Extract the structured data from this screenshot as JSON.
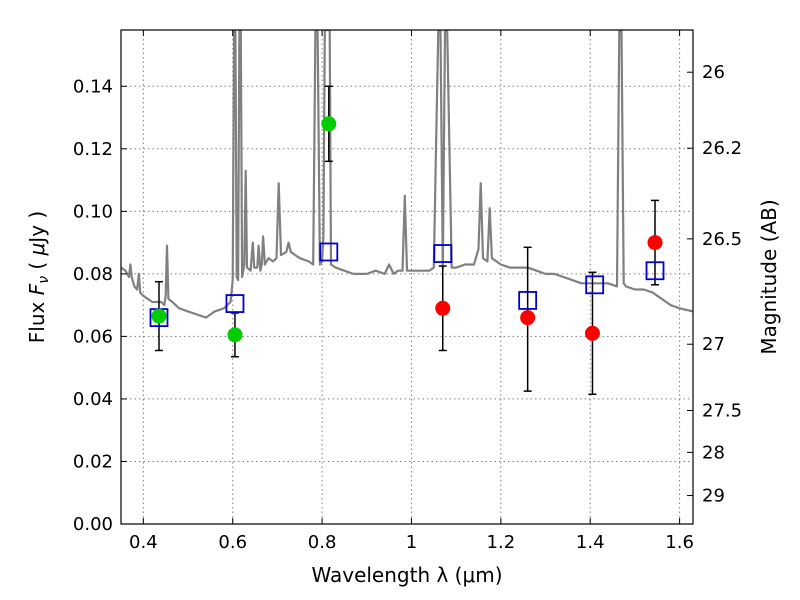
{
  "chart_data": {
    "type": "scatter",
    "xlabel": "Wavelength  λ (μm)",
    "ylabel": "Flux  Fν  ( μJy )",
    "ylabel_parts": {
      "prefix": "Flux ",
      "var": "F",
      "sub": "ν",
      "paren_open": "  ( ",
      "mu": "μ",
      "unit": "Jy )"
    },
    "right_ylabel": "Magnitude (AB)",
    "xlim": [
      0.35,
      1.63
    ],
    "ylim": [
      0.0,
      0.158
    ],
    "xticks": [
      0.4,
      0.6,
      0.8,
      1.0,
      1.2,
      1.4,
      1.6
    ],
    "xtick_labels": [
      "0.4",
      "0.6",
      "0.8",
      "1",
      "1.2",
      "1.4",
      "1.6"
    ],
    "yticks": [
      0.0,
      0.02,
      0.04,
      0.06,
      0.08,
      0.1,
      0.12,
      0.14
    ],
    "ytick_labels": [
      "0.00",
      "0.02",
      "0.04",
      "0.06",
      "0.08",
      "0.10",
      "0.12",
      "0.14"
    ],
    "right_ticks": [
      {
        "label": "26",
        "flux": 0.1445
      },
      {
        "label": "26.2",
        "flux": 0.1202
      },
      {
        "label": "26.5",
        "flux": 0.0912
      },
      {
        "label": "27",
        "flux": 0.0575
      },
      {
        "label": "27.5",
        "flux": 0.0363
      },
      {
        "label": "28",
        "flux": 0.0229
      },
      {
        "label": "29",
        "flux": 0.0091
      }
    ],
    "grid": true,
    "model_spectrum": {
      "color": "#808080",
      "points": [
        [
          0.35,
          0.082
        ],
        [
          0.36,
          0.081
        ],
        [
          0.368,
          0.079
        ],
        [
          0.371,
          0.083
        ],
        [
          0.374,
          0.079
        ],
        [
          0.38,
          0.076
        ],
        [
          0.386,
          0.075
        ],
        [
          0.39,
          0.08
        ],
        [
          0.393,
          0.074
        ],
        [
          0.4,
          0.073
        ],
        [
          0.41,
          0.072
        ],
        [
          0.42,
          0.071
        ],
        [
          0.43,
          0.071
        ],
        [
          0.44,
          0.071
        ],
        [
          0.447,
          0.07
        ],
        [
          0.45,
          0.073
        ],
        [
          0.453,
          0.089
        ],
        [
          0.456,
          0.072
        ],
        [
          0.465,
          0.071
        ],
        [
          0.48,
          0.069
        ],
        [
          0.5,
          0.068
        ],
        [
          0.52,
          0.067
        ],
        [
          0.54,
          0.066
        ],
        [
          0.56,
          0.068
        ],
        [
          0.58,
          0.069
        ],
        [
          0.595,
          0.071
        ],
        [
          0.6,
          0.078
        ],
        [
          0.603,
          0.158
        ],
        [
          0.606,
          0.158
        ],
        [
          0.609,
          0.079
        ],
        [
          0.612,
          0.078
        ],
        [
          0.615,
          0.158
        ],
        [
          0.618,
          0.158
        ],
        [
          0.621,
          0.079
        ],
        [
          0.626,
          0.083
        ],
        [
          0.629,
          0.113
        ],
        [
          0.632,
          0.082
        ],
        [
          0.64,
          0.081
        ],
        [
          0.645,
          0.09
        ],
        [
          0.648,
          0.082
        ],
        [
          0.655,
          0.082
        ],
        [
          0.658,
          0.089
        ],
        [
          0.662,
          0.081
        ],
        [
          0.665,
          0.083
        ],
        [
          0.668,
          0.092
        ],
        [
          0.672,
          0.083
        ],
        [
          0.68,
          0.085
        ],
        [
          0.69,
          0.084
        ],
        [
          0.698,
          0.085
        ],
        [
          0.703,
          0.109
        ],
        [
          0.708,
          0.086
        ],
        [
          0.72,
          0.087
        ],
        [
          0.725,
          0.09
        ],
        [
          0.73,
          0.087
        ],
        [
          0.75,
          0.085
        ],
        [
          0.77,
          0.084
        ],
        [
          0.78,
          0.083
        ],
        [
          0.785,
          0.158
        ],
        [
          0.79,
          0.158
        ],
        [
          0.795,
          0.083
        ],
        [
          0.8,
          0.084
        ],
        [
          0.803,
          0.092
        ],
        [
          0.806,
          0.158
        ],
        [
          0.81,
          0.158
        ],
        [
          0.813,
          0.158
        ],
        [
          0.817,
          0.158
        ],
        [
          0.82,
          0.083
        ],
        [
          0.83,
          0.082
        ],
        [
          0.85,
          0.081
        ],
        [
          0.87,
          0.08
        ],
        [
          0.9,
          0.08
        ],
        [
          0.92,
          0.081
        ],
        [
          0.94,
          0.08
        ],
        [
          0.95,
          0.083
        ],
        [
          0.96,
          0.08
        ],
        [
          0.97,
          0.081
        ],
        [
          0.98,
          0.081
        ],
        [
          0.985,
          0.105
        ],
        [
          0.99,
          0.081
        ],
        [
          1.0,
          0.081
        ],
        [
          1.02,
          0.081
        ],
        [
          1.04,
          0.081
        ],
        [
          1.05,
          0.082
        ],
        [
          1.055,
          0.12
        ],
        [
          1.06,
          0.158
        ],
        [
          1.065,
          0.158
        ],
        [
          1.07,
          0.082
        ],
        [
          1.075,
          0.158
        ],
        [
          1.08,
          0.158
        ],
        [
          1.09,
          0.082
        ],
        [
          1.1,
          0.082
        ],
        [
          1.12,
          0.083
        ],
        [
          1.14,
          0.083
        ],
        [
          1.15,
          0.088
        ],
        [
          1.155,
          0.109
        ],
        [
          1.16,
          0.085
        ],
        [
          1.17,
          0.084
        ],
        [
          1.175,
          0.101
        ],
        [
          1.18,
          0.085
        ],
        [
          1.2,
          0.083
        ],
        [
          1.22,
          0.082
        ],
        [
          1.24,
          0.082
        ],
        [
          1.26,
          0.082
        ],
        [
          1.28,
          0.081
        ],
        [
          1.3,
          0.08
        ],
        [
          1.32,
          0.08
        ],
        [
          1.34,
          0.079
        ],
        [
          1.36,
          0.078
        ],
        [
          1.38,
          0.077
        ],
        [
          1.4,
          0.077
        ],
        [
          1.42,
          0.077
        ],
        [
          1.44,
          0.077
        ],
        [
          1.46,
          0.076
        ],
        [
          1.465,
          0.158
        ],
        [
          1.47,
          0.158
        ],
        [
          1.475,
          0.077
        ],
        [
          1.48,
          0.076
        ],
        [
          1.5,
          0.075
        ],
        [
          1.52,
          0.075
        ],
        [
          1.54,
          0.074
        ],
        [
          1.55,
          0.073
        ],
        [
          1.56,
          0.072
        ],
        [
          1.58,
          0.07
        ],
        [
          1.6,
          0.069
        ],
        [
          1.63,
          0.068
        ]
      ]
    },
    "model_photometry": {
      "marker": "open-square",
      "color": "#0000cc",
      "points": [
        [
          0.435,
          0.066
        ],
        [
          0.605,
          0.0705
        ],
        [
          0.815,
          0.087
        ],
        [
          1.07,
          0.0865
        ],
        [
          1.26,
          0.0715
        ],
        [
          1.41,
          0.0765
        ],
        [
          1.545,
          0.081
        ]
      ]
    },
    "observed_green": {
      "color": "#00cc00",
      "points": [
        {
          "x": 0.435,
          "y": 0.0665,
          "err": [
            0.0555,
            0.0775
          ]
        },
        {
          "x": 0.605,
          "y": 0.0605,
          "err": [
            0.0535,
            0.0675
          ]
        },
        {
          "x": 0.815,
          "y": 0.128,
          "err": [
            0.116,
            0.14
          ]
        }
      ]
    },
    "observed_red": {
      "color": "#ff0000",
      "points": [
        {
          "x": 1.07,
          "y": 0.069,
          "err": [
            0.0555,
            0.0825
          ]
        },
        {
          "x": 1.26,
          "y": 0.066,
          "err": [
            0.0425,
            0.0885
          ]
        },
        {
          "x": 1.405,
          "y": 0.061,
          "err": [
            0.0415,
            0.0805
          ]
        },
        {
          "x": 1.545,
          "y": 0.09,
          "err": [
            0.0765,
            0.1035
          ]
        }
      ]
    }
  }
}
